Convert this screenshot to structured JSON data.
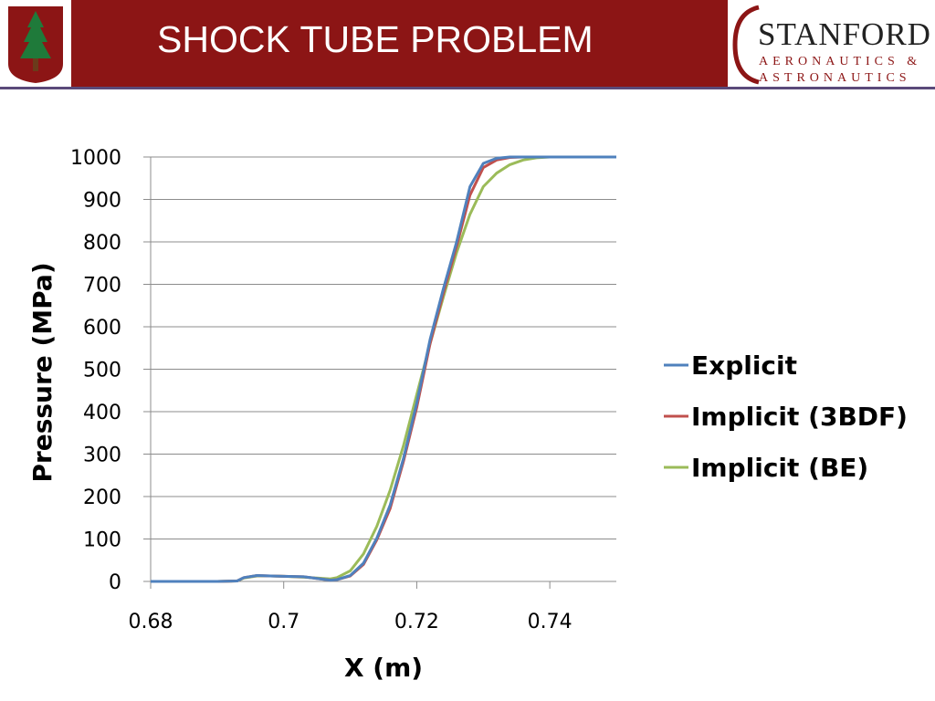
{
  "slide": {
    "title": "SHOCK TUBE PROBLEM"
  },
  "logo": {
    "wordmark": "STANFORD",
    "subline1": "AERONAUTICS &",
    "subline2": "ASTRONAUTICS"
  },
  "colors": {
    "header": "#8c1515",
    "explicit": "#4f81bd",
    "implicit_3bdf": "#c0504d",
    "implicit_be": "#9bbb59"
  },
  "chart_data": {
    "type": "line",
    "title": "",
    "xlabel": "X (m)",
    "ylabel": "Pressure (MPa)",
    "xlim": [
      0.68,
      0.75
    ],
    "ylim": [
      0,
      1000
    ],
    "xticks": [
      "0.68",
      "0.7",
      "0.72",
      "0.74"
    ],
    "yticks": [
      "0",
      "100",
      "200",
      "300",
      "400",
      "500",
      "600",
      "700",
      "800",
      "900",
      "1000"
    ],
    "grid": true,
    "legend_position": "right",
    "series": [
      {
        "name": "Explicit",
        "color": "#4f81bd",
        "points": [
          [
            0.68,
            0
          ],
          [
            0.69,
            0
          ],
          [
            0.693,
            1
          ],
          [
            0.694,
            9
          ],
          [
            0.696,
            14
          ],
          [
            0.698,
            13
          ],
          [
            0.7,
            12
          ],
          [
            0.703,
            11
          ],
          [
            0.705,
            7
          ],
          [
            0.707,
            3
          ],
          [
            0.708,
            4
          ],
          [
            0.71,
            14
          ],
          [
            0.712,
            43
          ],
          [
            0.714,
            102
          ],
          [
            0.716,
            180
          ],
          [
            0.718,
            290
          ],
          [
            0.72,
            420
          ],
          [
            0.722,
            570
          ],
          [
            0.724,
            690
          ],
          [
            0.726,
            800
          ],
          [
            0.728,
            930
          ],
          [
            0.73,
            985
          ],
          [
            0.732,
            997
          ],
          [
            0.734,
            1000
          ],
          [
            0.75,
            1000
          ]
        ]
      },
      {
        "name": "Implicit (3BDF)",
        "color": "#c0504d",
        "points": [
          [
            0.68,
            0
          ],
          [
            0.69,
            0
          ],
          [
            0.693,
            1
          ],
          [
            0.694,
            9
          ],
          [
            0.696,
            14
          ],
          [
            0.698,
            13
          ],
          [
            0.7,
            12
          ],
          [
            0.703,
            11
          ],
          [
            0.705,
            7
          ],
          [
            0.707,
            3
          ],
          [
            0.708,
            4
          ],
          [
            0.71,
            13
          ],
          [
            0.712,
            40
          ],
          [
            0.714,
            98
          ],
          [
            0.716,
            172
          ],
          [
            0.718,
            283
          ],
          [
            0.72,
            410
          ],
          [
            0.722,
            560
          ],
          [
            0.724,
            680
          ],
          [
            0.726,
            790
          ],
          [
            0.728,
            910
          ],
          [
            0.73,
            975
          ],
          [
            0.732,
            993
          ],
          [
            0.734,
            999
          ],
          [
            0.736,
            1000
          ],
          [
            0.75,
            1000
          ]
        ]
      },
      {
        "name": "Implicit (BE)",
        "color": "#9bbb59",
        "points": [
          [
            0.68,
            0
          ],
          [
            0.69,
            0
          ],
          [
            0.693,
            1
          ],
          [
            0.694,
            8
          ],
          [
            0.696,
            13
          ],
          [
            0.698,
            13
          ],
          [
            0.7,
            12
          ],
          [
            0.703,
            10
          ],
          [
            0.705,
            8
          ],
          [
            0.707,
            6
          ],
          [
            0.708,
            9
          ],
          [
            0.71,
            25
          ],
          [
            0.712,
            65
          ],
          [
            0.714,
            130
          ],
          [
            0.716,
            215
          ],
          [
            0.718,
            320
          ],
          [
            0.72,
            440
          ],
          [
            0.722,
            560
          ],
          [
            0.724,
            670
          ],
          [
            0.726,
            775
          ],
          [
            0.728,
            865
          ],
          [
            0.73,
            930
          ],
          [
            0.732,
            962
          ],
          [
            0.734,
            982
          ],
          [
            0.736,
            993
          ],
          [
            0.738,
            998
          ],
          [
            0.74,
            1000
          ],
          [
            0.75,
            1000
          ]
        ]
      }
    ]
  }
}
